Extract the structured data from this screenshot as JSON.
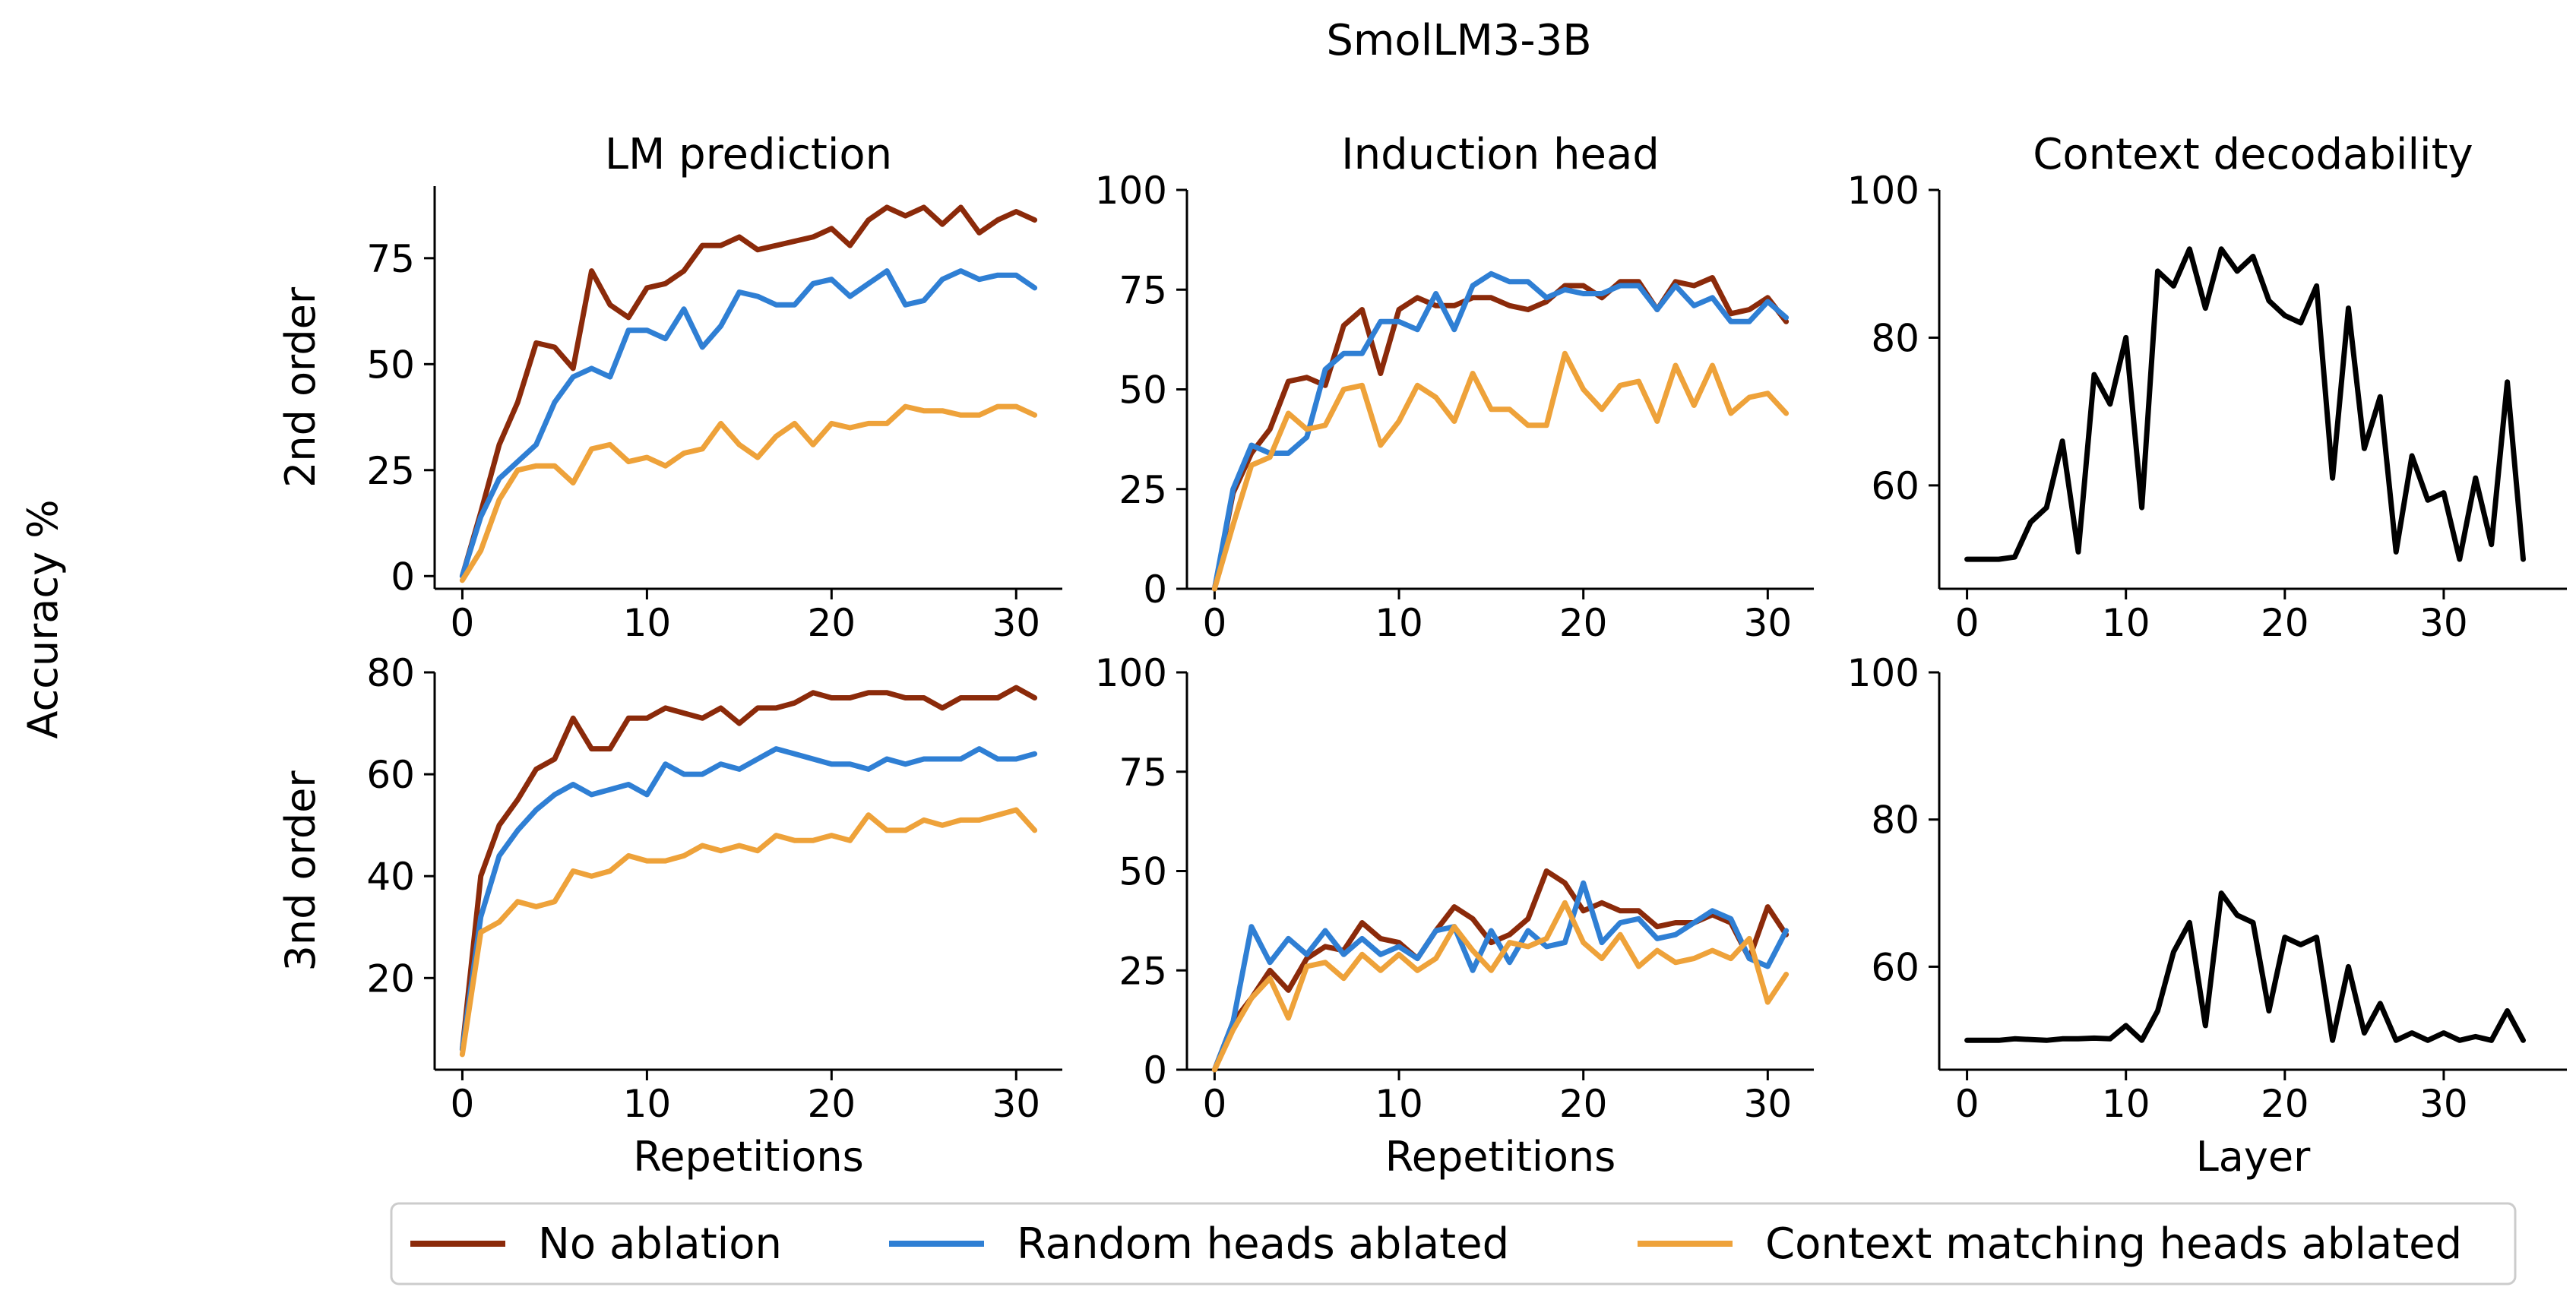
{
  "figure": {
    "suptitle": "SmolLM3-3B",
    "shared_ylabel": "Accuracy %",
    "legend": {
      "placement": "bottom-center",
      "entries": [
        {
          "name": "No ablation",
          "color": "#8b2a0a"
        },
        {
          "name": "Random heads ablated",
          "color": "#2f7fd4"
        },
        {
          "name": "Context matching heads ablated",
          "color": "#eea23a"
        }
      ]
    }
  },
  "chart_data": [
    {
      "id": "lm2",
      "type": "line",
      "title": "LM prediction",
      "ylabel": "2nd order",
      "xlabel": "",
      "xlim": [
        -1.5,
        32.5
      ],
      "ylim": [
        -3,
        92
      ],
      "xticks": [
        0,
        10,
        20,
        30
      ],
      "yticks": [
        0,
        25,
        50,
        75
      ],
      "x": [
        0,
        1,
        2,
        3,
        4,
        5,
        6,
        7,
        8,
        9,
        10,
        11,
        12,
        13,
        14,
        15,
        16,
        17,
        18,
        19,
        20,
        21,
        22,
        23,
        24,
        25,
        26,
        27,
        28,
        29,
        30,
        31
      ],
      "series": [
        {
          "name": "No ablation",
          "values": [
            0,
            15,
            31,
            41,
            55,
            54,
            49,
            72,
            64,
            61,
            68,
            69,
            72,
            78,
            78,
            80,
            77,
            78,
            79,
            80,
            82,
            78,
            84,
            87,
            85,
            87,
            83,
            87,
            81,
            84,
            86,
            84
          ]
        },
        {
          "name": "Random heads ablated",
          "values": [
            0,
            14,
            23,
            27,
            31,
            41,
            47,
            49,
            47,
            58,
            58,
            56,
            63,
            54,
            59,
            67,
            66,
            64,
            64,
            69,
            70,
            66,
            69,
            72,
            64,
            65,
            70,
            72,
            70,
            71,
            71,
            68
          ]
        },
        {
          "name": "Context matching heads ablated",
          "values": [
            -1,
            6,
            18,
            25,
            26,
            26,
            22,
            30,
            31,
            27,
            28,
            26,
            29,
            30,
            36,
            31,
            28,
            33,
            36,
            31,
            36,
            35,
            36,
            36,
            40,
            39,
            39,
            38,
            38,
            40,
            40,
            38
          ]
        }
      ]
    },
    {
      "id": "ind2",
      "type": "line",
      "title": "Induction head",
      "ylabel": "",
      "xlabel": "",
      "xlim": [
        -1.5,
        32.5
      ],
      "ylim": [
        0,
        100
      ],
      "xticks": [
        0,
        10,
        20,
        30
      ],
      "yticks": [
        0,
        25,
        50,
        75,
        100
      ],
      "x": [
        0,
        1,
        2,
        3,
        4,
        5,
        6,
        7,
        8,
        9,
        10,
        11,
        12,
        13,
        14,
        15,
        16,
        17,
        18,
        19,
        20,
        21,
        22,
        23,
        24,
        25,
        26,
        27,
        28,
        29,
        30,
        31
      ],
      "series": [
        {
          "name": "No ablation",
          "values": [
            0,
            24,
            34,
            40,
            52,
            53,
            51,
            66,
            70,
            54,
            70,
            73,
            71,
            71,
            73,
            73,
            71,
            70,
            72,
            76,
            76,
            73,
            77,
            77,
            70,
            77,
            76,
            78,
            69,
            70,
            73,
            67
          ]
        },
        {
          "name": "Random heads ablated",
          "values": [
            0,
            25,
            36,
            34,
            34,
            38,
            55,
            59,
            59,
            67,
            67,
            65,
            74,
            65,
            76,
            79,
            77,
            77,
            73,
            75,
            74,
            74,
            76,
            76,
            70,
            76,
            71,
            73,
            67,
            67,
            72,
            68
          ]
        },
        {
          "name": "Context matching heads ablated",
          "values": [
            0,
            16,
            31,
            33,
            44,
            40,
            41,
            50,
            51,
            36,
            42,
            51,
            48,
            42,
            54,
            45,
            45,
            41,
            41,
            59,
            50,
            45,
            51,
            52,
            42,
            56,
            46,
            56,
            44,
            48,
            49,
            44
          ]
        }
      ]
    },
    {
      "id": "ctx2",
      "type": "line",
      "title": "Context decodability",
      "ylabel": "",
      "xlabel": "",
      "xlim": [
        -1.75,
        37.75
      ],
      "ylim": [
        46,
        100
      ],
      "xticks": [
        0,
        10,
        20,
        30
      ],
      "yticks": [
        60,
        80,
        100
      ],
      "x": [
        0,
        1,
        2,
        3,
        4,
        5,
        6,
        7,
        8,
        9,
        10,
        11,
        12,
        13,
        14,
        15,
        16,
        17,
        18,
        19,
        20,
        21,
        22,
        23,
        24,
        25,
        26,
        27,
        28,
        29,
        30,
        31,
        32,
        33,
        34,
        35
      ],
      "series": [
        {
          "name": "No ablation",
          "values": [
            50,
            50,
            50,
            50.3,
            55,
            57,
            66,
            51,
            75,
            71,
            80,
            57,
            89,
            87,
            92,
            84,
            92,
            89,
            91,
            85,
            83,
            82,
            87,
            61,
            84,
            65,
            72,
            51,
            64,
            58,
            59,
            50,
            61,
            52,
            74,
            50
          ]
        }
      ]
    },
    {
      "id": "lm3",
      "type": "line",
      "title": "",
      "ylabel": "3nd order",
      "xlabel": "Repetitions",
      "xlim": [
        -1.5,
        32.5
      ],
      "ylim": [
        2,
        80
      ],
      "xticks": [
        0,
        10,
        20,
        30
      ],
      "yticks": [
        20,
        40,
        60,
        80
      ],
      "x": [
        0,
        1,
        2,
        3,
        4,
        5,
        6,
        7,
        8,
        9,
        10,
        11,
        12,
        13,
        14,
        15,
        16,
        17,
        18,
        19,
        20,
        21,
        22,
        23,
        24,
        25,
        26,
        27,
        28,
        29,
        30,
        31
      ],
      "series": [
        {
          "name": "No ablation",
          "values": [
            6,
            40,
            50,
            55,
            61,
            63,
            71,
            65,
            65,
            71,
            71,
            73,
            72,
            71,
            73,
            70,
            73,
            73,
            74,
            76,
            75,
            75,
            76,
            76,
            75,
            75,
            73,
            75,
            75,
            75,
            77,
            75
          ]
        },
        {
          "name": "Random heads ablated",
          "values": [
            6,
            32,
            44,
            49,
            53,
            56,
            58,
            56,
            57,
            58,
            56,
            62,
            60,
            60,
            62,
            61,
            63,
            65,
            64,
            63,
            62,
            62,
            61,
            63,
            62,
            63,
            63,
            63,
            65,
            63,
            63,
            64
          ]
        },
        {
          "name": "Context matching heads ablated",
          "values": [
            5,
            29,
            31,
            35,
            34,
            35,
            41,
            40,
            41,
            44,
            43,
            43,
            44,
            46,
            45,
            46,
            45,
            48,
            47,
            47,
            48,
            47,
            52,
            49,
            49,
            51,
            50,
            51,
            51,
            52,
            53,
            49
          ]
        }
      ]
    },
    {
      "id": "ind3",
      "type": "line",
      "title": "",
      "ylabel": "",
      "xlabel": "Repetitions",
      "xlim": [
        -1.5,
        32.5
      ],
      "ylim": [
        0,
        100
      ],
      "xticks": [
        0,
        10,
        20,
        30
      ],
      "yticks": [
        0,
        25,
        50,
        75,
        100
      ],
      "x": [
        0,
        1,
        2,
        3,
        4,
        5,
        6,
        7,
        8,
        9,
        10,
        11,
        12,
        13,
        14,
        15,
        16,
        17,
        18,
        19,
        20,
        21,
        22,
        23,
        24,
        25,
        26,
        27,
        28,
        29,
        30,
        31
      ],
      "series": [
        {
          "name": "No ablation",
          "values": [
            0,
            12,
            18,
            25,
            20,
            28,
            31,
            30,
            37,
            33,
            32,
            28,
            35,
            41,
            38,
            32,
            34,
            38,
            50,
            47,
            40,
            42,
            40,
            40,
            36,
            37,
            37,
            39,
            37,
            28,
            41,
            34
          ]
        },
        {
          "name": "Random heads ablated",
          "values": [
            0,
            12,
            36,
            27,
            33,
            29,
            35,
            29,
            33,
            29,
            31,
            28,
            35,
            36,
            25,
            35,
            27,
            35,
            31,
            32,
            47,
            32,
            37,
            38,
            33,
            34,
            37,
            40,
            38,
            28,
            26,
            35
          ]
        },
        {
          "name": "Context matching heads ablated",
          "values": [
            0,
            10,
            18,
            23,
            13,
            26,
            27,
            23,
            29,
            25,
            29,
            25,
            28,
            36,
            30,
            25,
            32,
            31,
            33,
            42,
            32,
            28,
            34,
            26,
            30,
            27,
            28,
            30,
            28,
            33,
            17,
            24
          ]
        }
      ]
    },
    {
      "id": "ctx3",
      "type": "line",
      "title": "",
      "ylabel": "",
      "xlabel": "Layer",
      "xlim": [
        -1.75,
        37.75
      ],
      "ylim": [
        46,
        100
      ],
      "xticks": [
        0,
        10,
        20,
        30
      ],
      "yticks": [
        60,
        80,
        100
      ],
      "x": [
        0,
        1,
        2,
        3,
        4,
        5,
        6,
        7,
        8,
        9,
        10,
        11,
        12,
        13,
        14,
        15,
        16,
        17,
        18,
        19,
        20,
        21,
        22,
        23,
        24,
        25,
        26,
        27,
        28,
        29,
        30,
        31,
        32,
        33,
        34,
        35
      ],
      "series": [
        {
          "name": "No ablation",
          "values": [
            50,
            50,
            50,
            50.2,
            50.1,
            50,
            50.2,
            50.2,
            50.3,
            50.2,
            52,
            50,
            54,
            62,
            66,
            52,
            70,
            67,
            66,
            54,
            64,
            63,
            64,
            50,
            60,
            51,
            55,
            50,
            51,
            50,
            51,
            50,
            50.5,
            50,
            54,
            50
          ]
        }
      ]
    }
  ]
}
